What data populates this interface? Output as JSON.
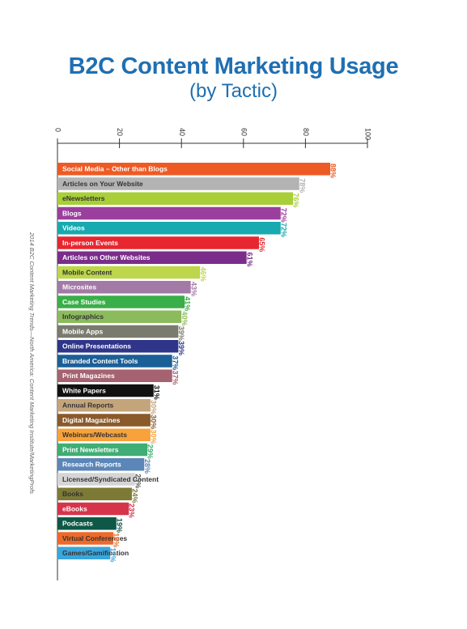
{
  "title": "B2C Content Marketing Usage",
  "subtitle": "(by Tactic)",
  "side_note": "2014 B2C Content Marketing Trends—North America: Content Marketing Institute/MarketingProfs",
  "chart_data": {
    "type": "bar",
    "orientation": "horizontal",
    "xlim": [
      0,
      100
    ],
    "xticks": [
      0,
      20,
      40,
      60,
      80,
      100
    ],
    "xticks_labels": [
      "0",
      "20",
      "40",
      "60",
      "80",
      "100"
    ],
    "value_suffix": "%",
    "categories": [
      "Social Media – Other than Blogs",
      "Articles on Your Website",
      "eNewsletters",
      "Blogs",
      "Videos",
      "In-person Events",
      "Articles on Other Websites",
      "Mobile Content",
      "Microsites",
      "Case Studies",
      "Infographics",
      "Mobile Apps",
      "Online Presentations",
      "Branded Content Tools",
      "Print Magazines",
      "White Papers",
      "Annual Reports",
      "Digital Magazines",
      "Webinars/Webcasts",
      "Print Newsletters",
      "Research Reports",
      "Licensed/Syndicated Content",
      "Books",
      "eBooks",
      "Podcasts",
      "Virtual Conferences",
      "Games/Gamification"
    ],
    "values": [
      88,
      78,
      76,
      72,
      72,
      65,
      61,
      46,
      43,
      41,
      40,
      39,
      39,
      37,
      37,
      31,
      30,
      30,
      30,
      29,
      28,
      25,
      24,
      23,
      19,
      18,
      17
    ],
    "colors": [
      "#ee5a24",
      "#b3b3b3",
      "#a8cf38",
      "#9b3f9e",
      "#17aab0",
      "#e8262f",
      "#7b2d8b",
      "#bdd64b",
      "#a37aa6",
      "#3aae48",
      "#8cbb5d",
      "#7a7a6e",
      "#2f3589",
      "#1b5f97",
      "#a56270",
      "#111111",
      "#c4a57b",
      "#8a5a2b",
      "#f7a23a",
      "#3fae74",
      "#5b86b8",
      "#d5d5d5",
      "#7d7a35",
      "#d6344a",
      "#0d5846",
      "#ee6a2a",
      "#3aa6dd"
    ],
    "label_colors": [
      "#ffffff",
      "#333333",
      "#333333",
      "#ffffff",
      "#ffffff",
      "#ffffff",
      "#ffffff",
      "#333333",
      "#ffffff",
      "#ffffff",
      "#333333",
      "#ffffff",
      "#ffffff",
      "#ffffff",
      "#ffffff",
      "#ffffff",
      "#333333",
      "#ffffff",
      "#333333",
      "#ffffff",
      "#ffffff",
      "#333333",
      "#333333",
      "#ffffff",
      "#ffffff",
      "#333333",
      "#333333"
    ]
  }
}
